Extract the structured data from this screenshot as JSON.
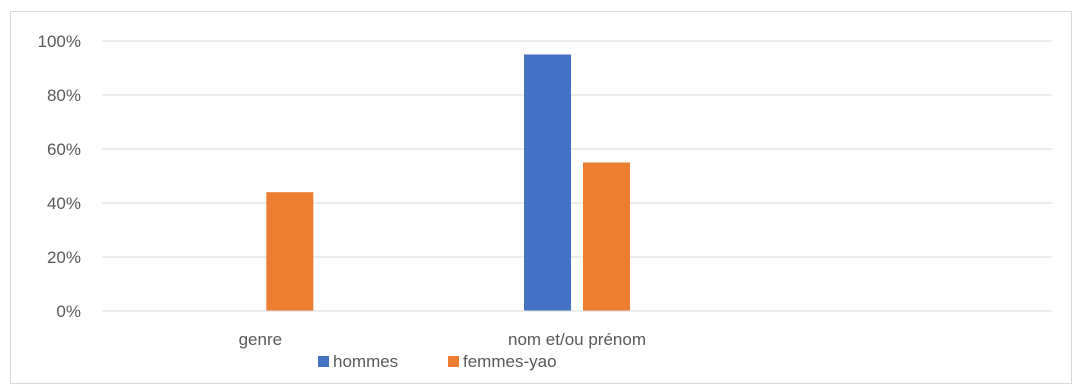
{
  "chart_data": {
    "type": "bar",
    "categories": [
      "genre",
      "nom et/ou prénom",
      ""
    ],
    "series": [
      {
        "name": "hommes",
        "values": [
          0,
          95,
          0
        ],
        "color": "#4472c4"
      },
      {
        "name": "femmes-yao",
        "values": [
          44,
          55,
          0
        ],
        "color": "#ed7d31"
      }
    ],
    "ylim": [
      0,
      100
    ],
    "yticks": [
      "0%",
      "20%",
      "40%",
      "60%",
      "80%",
      "100%"
    ],
    "ytick_values": [
      0,
      20,
      40,
      60,
      80,
      100
    ],
    "grid": true,
    "legend_position": "bottom",
    "title": "",
    "xlabel": "",
    "ylabel": ""
  }
}
